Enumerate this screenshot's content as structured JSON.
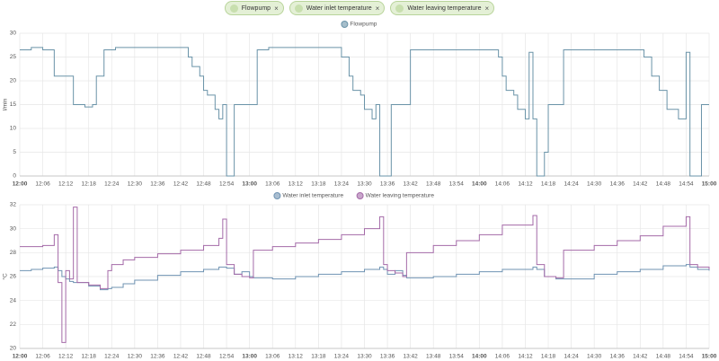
{
  "chips": [
    "Flowpump",
    "Water inlet temperature",
    "Water leaving temperature"
  ],
  "chart_data": [
    {
      "type": "step",
      "ylabel": "l/min",
      "x": [
        "12:00",
        "12:03",
        "12:06",
        "12:09",
        "12:14",
        "12:17",
        "12:19",
        "12:20",
        "12:22",
        "12:25",
        "12:44",
        "12:45",
        "12:47",
        "12:48",
        "12:49",
        "12:51",
        "12:52",
        "12:53",
        "12:54",
        "12:56",
        "13:02",
        "13:05",
        "13:24",
        "13:26",
        "13:27",
        "13:29",
        "13:30",
        "13:32",
        "13:33",
        "13:34",
        "13:37",
        "13:42",
        "14:05",
        "14:06",
        "14:07",
        "14:09",
        "14:10",
        "14:12",
        "14:13",
        "14:14",
        "14:15",
        "14:17",
        "14:18",
        "14:22",
        "14:43",
        "14:45",
        "14:47",
        "14:49",
        "14:52",
        "14:54",
        "14:55",
        "14:58",
        "15:00"
      ],
      "series": [
        {
          "name": "Flowpump",
          "color": "#6a93a8",
          "values": [
            26.5,
            27,
            26.5,
            21,
            15,
            14.5,
            15,
            21,
            26.5,
            27,
            25,
            23,
            21,
            18,
            17,
            14,
            12,
            15,
            0,
            15,
            26.5,
            27,
            25,
            21,
            18,
            17,
            14,
            12,
            15,
            0,
            15,
            26.5,
            25,
            21,
            18,
            17,
            14,
            12,
            26,
            12,
            0,
            5,
            15,
            26.5,
            25,
            21,
            18,
            14,
            12,
            26,
            0,
            15,
            15
          ]
        }
      ],
      "ylim": [
        0,
        30
      ],
      "yticks": [
        0,
        5,
        10,
        15,
        20,
        25,
        30
      ],
      "xlim": [
        "12:00",
        "15:00"
      ],
      "xticks": [
        "12:00",
        "12:06",
        "12:12",
        "12:18",
        "12:24",
        "12:30",
        "12:36",
        "12:42",
        "12:48",
        "12:54",
        "13:00",
        "13:06",
        "13:12",
        "13:18",
        "13:24",
        "13:30",
        "13:36",
        "13:42",
        "13:48",
        "13:54",
        "14:00",
        "14:06",
        "14:12",
        "14:18",
        "14:24",
        "14:30",
        "14:36",
        "14:42",
        "14:48",
        "14:54",
        "15:00"
      ],
      "grid": true
    },
    {
      "type": "step",
      "ylabel": "°C",
      "x": [
        "12:00",
        "12:03",
        "12:06",
        "12:09",
        "12:10",
        "12:11",
        "12:12",
        "12:13",
        "12:14",
        "12:15",
        "12:18",
        "12:21",
        "12:23",
        "12:24",
        "12:27",
        "12:30",
        "12:36",
        "12:42",
        "12:48",
        "12:52",
        "12:53",
        "12:54",
        "12:56",
        "12:58",
        "13:00",
        "13:01",
        "13:06",
        "13:12",
        "13:18",
        "13:24",
        "13:30",
        "13:34",
        "13:35",
        "13:36",
        "13:38",
        "13:40",
        "13:41",
        "13:48",
        "13:54",
        "14:00",
        "14:06",
        "14:14",
        "14:15",
        "14:17",
        "14:20",
        "14:22",
        "14:30",
        "14:36",
        "14:42",
        "14:48",
        "14:54",
        "14:55",
        "14:57",
        "15:00"
      ],
      "series": [
        {
          "name": "Water inlet temperature",
          "color": "#6f93b2",
          "values": [
            26.5,
            26.6,
            26.7,
            26.8,
            26.5,
            26.0,
            25.8,
            25.6,
            25.5,
            25.5,
            25.2,
            24.9,
            25.0,
            25.1,
            25.4,
            25.7,
            26.1,
            26.4,
            26.6,
            26.8,
            26.8,
            26.7,
            26.2,
            26.4,
            26.0,
            25.9,
            25.8,
            26.0,
            26.2,
            26.4,
            26.6,
            26.8,
            26.6,
            26.2,
            26.5,
            26.1,
            25.9,
            26.0,
            26.2,
            26.4,
            26.6,
            26.8,
            26.6,
            26.0,
            25.8,
            25.8,
            26.2,
            26.4,
            26.6,
            26.9,
            27.0,
            26.8,
            26.6,
            26.5
          ]
        },
        {
          "name": "Water leaving temperature",
          "color": "#a46aa8",
          "values": [
            28.5,
            28.5,
            28.6,
            29.5,
            25.5,
            20.5,
            26.5,
            25.8,
            31.8,
            25.5,
            25.3,
            25.0,
            26.5,
            27.0,
            27.4,
            27.6,
            27.9,
            28.2,
            28.6,
            29.2,
            30.8,
            27.0,
            26.2,
            26.0,
            25.9,
            28.2,
            28.5,
            28.8,
            29.1,
            29.5,
            30.0,
            31.0,
            27.0,
            26.5,
            26.3,
            26.0,
            28.0,
            28.6,
            29.0,
            29.5,
            30.3,
            31.1,
            27.0,
            26.0,
            25.9,
            28.2,
            28.6,
            29.0,
            29.4,
            30.2,
            31.0,
            27.0,
            26.8,
            26.6
          ]
        }
      ],
      "ylim": [
        20,
        32
      ],
      "yticks": [
        20,
        22,
        24,
        26,
        28,
        30,
        32
      ],
      "xlim": [
        "12:00",
        "15:00"
      ],
      "xticks": [
        "12:00",
        "12:06",
        "12:12",
        "12:18",
        "12:24",
        "12:30",
        "12:36",
        "12:42",
        "12:48",
        "12:54",
        "13:00",
        "13:06",
        "13:12",
        "13:18",
        "13:24",
        "13:30",
        "13:36",
        "13:42",
        "13:48",
        "13:54",
        "14:00",
        "14:06",
        "14:12",
        "14:18",
        "14:24",
        "14:30",
        "14:36",
        "14:42",
        "14:48",
        "14:54",
        "15:00"
      ],
      "grid": true
    }
  ]
}
